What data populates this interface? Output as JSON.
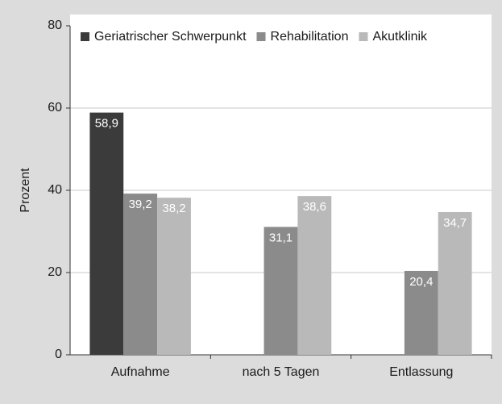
{
  "chart_data": {
    "type": "bar",
    "categories": [
      "Aufnahme",
      "nach 5 Tagen",
      "Entlassung"
    ],
    "series": [
      {
        "name": "Geriatrischer Schwerpunkt",
        "color": "#3b3b3b",
        "values": [
          58.9,
          null,
          null
        ],
        "value_labels": [
          "58,9",
          null,
          null
        ]
      },
      {
        "name": "Rehabilitation",
        "color": "#8b8b8c",
        "values": [
          39.2,
          31.1,
          20.4
        ],
        "value_labels": [
          "39,2",
          "31,1",
          "20,4"
        ]
      },
      {
        "name": "Akutklinik",
        "color": "#b9b9ba",
        "values": [
          38.2,
          38.6,
          34.7
        ],
        "value_labels": [
          "38,2",
          "38,6",
          "34,7"
        ]
      }
    ],
    "ylabel": "Prozent",
    "ylim": [
      0,
      80
    ],
    "yticks": [
      0,
      20,
      40,
      60,
      80
    ],
    "grid": true,
    "legend": "top"
  }
}
